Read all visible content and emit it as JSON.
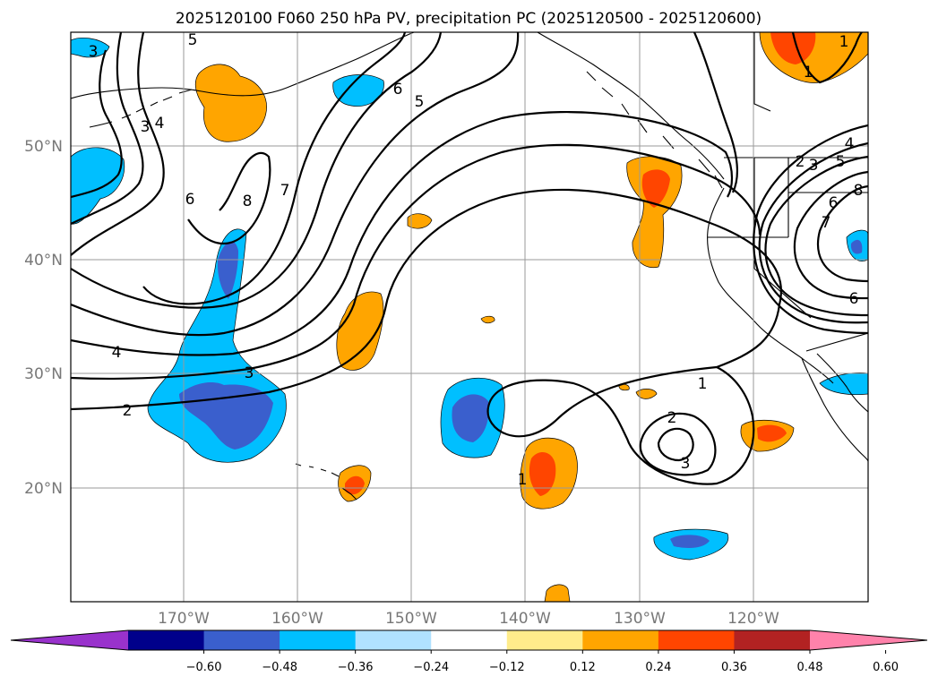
{
  "title": "2025120100 F060 250 hPa PV, precipitation PC (2025120500 - 2025120600)",
  "lat_labels": [
    "50°N",
    "40°N",
    "30°N",
    "20°N"
  ],
  "lon_labels": [
    "170°W",
    "160°W",
    "150°W",
    "140°W",
    "130°W",
    "120°W"
  ],
  "pv_contour_labels": [
    "3",
    "4",
    "5",
    "6",
    "7",
    "8",
    "2",
    "4",
    "3",
    "5",
    "6",
    "1",
    "1",
    "2",
    "3",
    "2",
    "3",
    "4",
    "5",
    "6",
    "8",
    "7",
    "6",
    "1",
    "1",
    "3"
  ],
  "colorbar": {
    "ticks": [
      "−0.60",
      "−0.48",
      "−0.36",
      "−0.24",
      "−0.12",
      "0.12",
      "0.24",
      "0.36",
      "0.48",
      "0.60"
    ],
    "colors": [
      "#9932cc",
      "#00008b",
      "#3a5fcd",
      "#00bfff",
      "#b0e2ff",
      "#ffffff",
      "#ffec8b",
      "#ffa500",
      "#ff4500",
      "#b22222",
      "#ff82ab"
    ]
  },
  "map": {
    "lon_range": [
      "180°",
      "110°W"
    ],
    "lat_range": [
      "10°N",
      "60°N"
    ]
  }
}
